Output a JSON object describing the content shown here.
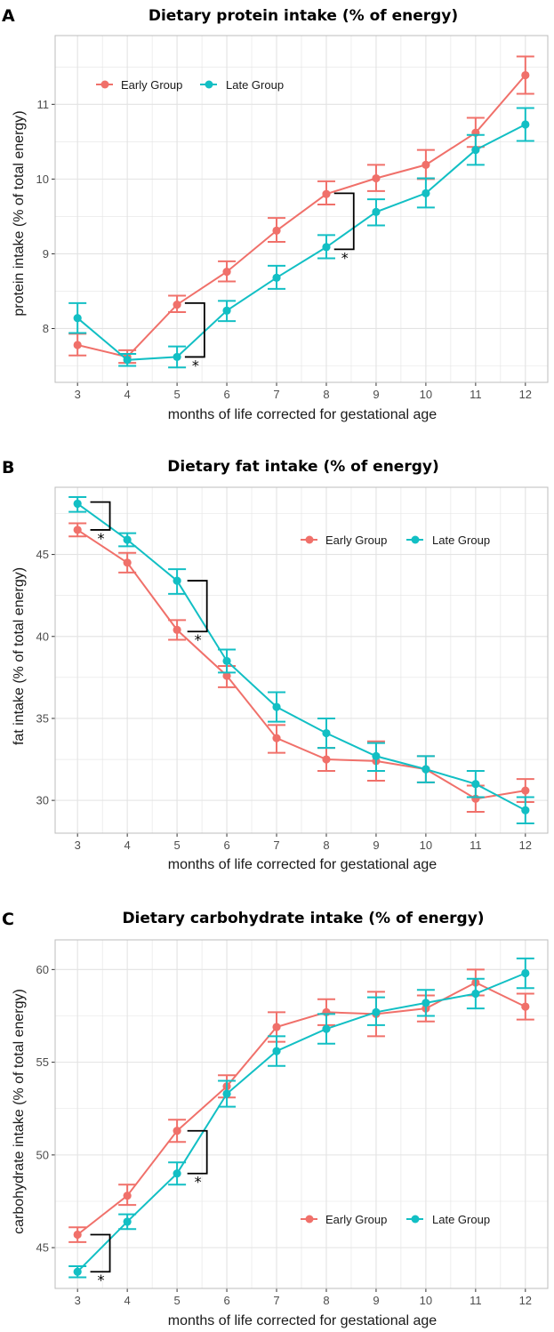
{
  "colors": {
    "early": "#F0706A",
    "late": "#12BFC4",
    "grid": "#E3E3E3",
    "frame": "#BDBDBD"
  },
  "chart_data": [
    {
      "panel": "A",
      "type": "line",
      "title": "Dietary protein intake (% of energy)",
      "xlabel": "months of life corrected for gestational age",
      "ylabel": "protein intake (% of total energy)",
      "x": [
        3,
        4,
        5,
        6,
        7,
        8,
        9,
        10,
        11,
        12
      ],
      "xlim": [
        2.55,
        12.45
      ],
      "ylim": [
        7.28,
        11.92
      ],
      "yticks": [
        8,
        9,
        10,
        11
      ],
      "legend": {
        "position": "top-left",
        "labels": [
          "Early Group",
          "Late Group"
        ]
      },
      "series": [
        {
          "name": "Early Group",
          "values": [
            7.78,
            7.62,
            8.32,
            8.76,
            9.31,
            9.8,
            10.01,
            10.19,
            10.62,
            11.39
          ],
          "lower": [
            7.64,
            7.54,
            8.22,
            8.63,
            9.16,
            9.66,
            9.84,
            10.0,
            10.43,
            11.14
          ],
          "upper": [
            7.93,
            7.71,
            8.44,
            8.9,
            9.48,
            9.97,
            10.19,
            10.39,
            10.82,
            11.64
          ]
        },
        {
          "name": "Late Group",
          "values": [
            8.14,
            7.58,
            7.62,
            8.24,
            8.68,
            9.09,
            9.56,
            9.81,
            10.39,
            10.73
          ],
          "lower": [
            7.94,
            7.5,
            7.48,
            8.1,
            8.53,
            8.94,
            9.38,
            9.62,
            10.19,
            10.51
          ],
          "upper": [
            8.34,
            7.66,
            7.76,
            8.37,
            8.84,
            9.25,
            9.73,
            10.01,
            10.59,
            10.95
          ]
        }
      ],
      "annotations": [
        {
          "text": "*",
          "x": 5.55,
          "y_top": 8.34,
          "y_bottom": 7.62
        },
        {
          "text": "*",
          "x": 8.55,
          "y_top": 9.81,
          "y_bottom": 9.06
        }
      ]
    },
    {
      "panel": "B",
      "type": "line",
      "title": "Dietary fat intake (% of energy)",
      "xlabel": "months of life corrected for gestational age",
      "ylabel": "fat intake (% of total energy)",
      "x": [
        3,
        4,
        5,
        6,
        7,
        8,
        9,
        10,
        11,
        12
      ],
      "xlim": [
        2.55,
        12.45
      ],
      "ylim": [
        28.0,
        49.1
      ],
      "yticks": [
        30,
        35,
        40,
        45
      ],
      "legend": {
        "position": "top-right",
        "labels": [
          "Early Group",
          "Late Group"
        ]
      },
      "series": [
        {
          "name": "Early Group",
          "values": [
            46.5,
            44.5,
            40.4,
            37.6,
            33.8,
            32.5,
            32.4,
            31.9,
            30.1,
            30.6
          ],
          "lower": [
            46.1,
            43.9,
            39.8,
            36.9,
            32.9,
            31.8,
            31.2,
            31.1,
            29.3,
            29.9
          ],
          "upper": [
            46.9,
            45.1,
            41.0,
            38.2,
            34.6,
            33.2,
            33.6,
            32.7,
            30.9,
            31.3
          ]
        },
        {
          "name": "Late Group",
          "values": [
            48.1,
            45.9,
            43.4,
            38.5,
            35.7,
            34.1,
            32.7,
            31.9,
            31.0,
            29.4
          ],
          "lower": [
            47.6,
            45.5,
            42.6,
            37.8,
            34.8,
            33.2,
            31.8,
            31.1,
            30.2,
            28.6
          ],
          "upper": [
            48.5,
            46.3,
            44.1,
            39.2,
            36.6,
            35.0,
            33.5,
            32.7,
            31.8,
            30.2
          ]
        }
      ],
      "annotations": [
        {
          "text": "*",
          "x": 3.65,
          "y_top": 48.2,
          "y_bottom": 46.5
        },
        {
          "text": "*",
          "x": 5.6,
          "y_top": 43.4,
          "y_bottom": 40.3
        }
      ]
    },
    {
      "panel": "C",
      "type": "line",
      "title": "Dietary carbohydrate intake (% of energy)",
      "xlabel": "months of life corrected for gestational age",
      "ylabel": "carbohydrate intake (% of total energy)",
      "x": [
        3,
        4,
        5,
        6,
        7,
        8,
        9,
        10,
        11,
        12
      ],
      "xlim": [
        2.55,
        12.45
      ],
      "ylim": [
        42.8,
        61.6
      ],
      "yticks": [
        45,
        50,
        55,
        60
      ],
      "legend": {
        "position": "bottom-right",
        "labels": [
          "Early Group",
          "Late Group"
        ]
      },
      "series": [
        {
          "name": "Early Group",
          "values": [
            45.7,
            47.8,
            51.3,
            53.7,
            56.9,
            57.7,
            57.6,
            57.9,
            59.3,
            58.0
          ],
          "lower": [
            45.3,
            47.3,
            50.7,
            53.1,
            56.1,
            57.0,
            56.4,
            57.2,
            58.6,
            57.3
          ],
          "upper": [
            46.1,
            48.4,
            51.9,
            54.3,
            57.7,
            58.4,
            58.8,
            58.6,
            60.0,
            58.7
          ]
        },
        {
          "name": "Late Group",
          "values": [
            43.7,
            46.4,
            49.0,
            53.3,
            55.6,
            56.8,
            57.7,
            58.2,
            58.7,
            59.8
          ],
          "lower": [
            43.4,
            46.0,
            48.4,
            52.6,
            54.8,
            56.0,
            57.0,
            57.5,
            57.9,
            59.0
          ],
          "upper": [
            44.0,
            46.8,
            49.6,
            54.0,
            56.4,
            57.6,
            58.5,
            58.9,
            59.5,
            60.6
          ]
        }
      ],
      "annotations": [
        {
          "text": "*",
          "x": 3.65,
          "y_top": 45.7,
          "y_bottom": 43.7
        },
        {
          "text": "*",
          "x": 5.6,
          "y_top": 51.3,
          "y_bottom": 49.0
        }
      ]
    }
  ]
}
